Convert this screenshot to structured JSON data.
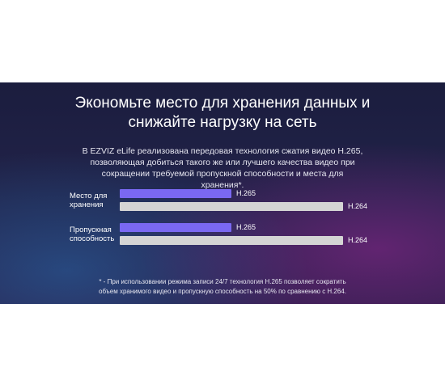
{
  "chart_data": {
    "type": "bar",
    "orientation": "horizontal",
    "title": "Экономьте место для хранения данных и снижайте нагрузку на сеть",
    "subtitle": "В EZVIZ eLife реализована передовая технология сжатия видео H.265, позволяющая добиться такого же или лучшего качества видео при сокращении требуемой пропускной способности и места для хранения*.",
    "categories": [
      "Место для хранения",
      "Пропускная способность"
    ],
    "series": [
      {
        "name": "H.265",
        "color": "#7a68f2",
        "values": [
          50,
          50
        ]
      },
      {
        "name": "H.264",
        "color": "#d4d4d4",
        "values": [
          100,
          100
        ]
      }
    ],
    "xlim": [
      0,
      100
    ],
    "footnote": "* - При использовании режима записи 24/7 технология H.265 позволяет сократить объем хранимого видео и пропускную способность на 50% по сравнению с H.264."
  }
}
